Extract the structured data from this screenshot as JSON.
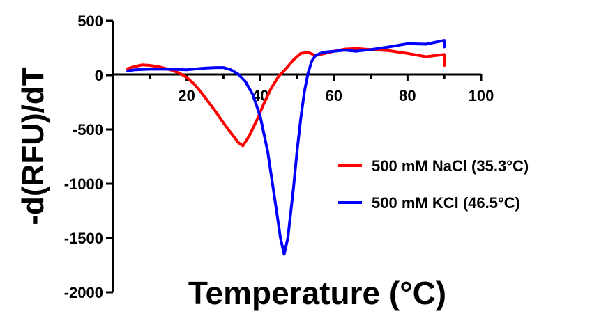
{
  "chart_data": {
    "type": "line",
    "title": "",
    "xlabel": "Temperature (°C)",
    "ylabel": "-d(RFU)/dT",
    "xlim": [
      0,
      100
    ],
    "ylim": [
      -2000,
      500
    ],
    "xticks": [
      20,
      40,
      60,
      80,
      100
    ],
    "yticks": [
      500,
      0,
      -500,
      -1000,
      -1500,
      -2000
    ],
    "grid": false,
    "legend_position": "right",
    "series": [
      {
        "name": "500 mM NaCl (35.3°C)",
        "color": "#ff0000",
        "x": [
          4,
          6,
          8,
          10,
          12,
          14,
          16,
          18,
          20,
          22,
          24,
          26,
          28,
          30,
          32,
          34,
          35.3,
          37,
          39,
          41,
          43,
          45,
          47,
          49,
          51,
          53,
          55,
          57,
          60,
          63,
          66,
          70,
          75,
          80,
          85,
          90,
          90
        ],
        "values": [
          60,
          80,
          95,
          90,
          80,
          65,
          45,
          20,
          -20,
          -80,
          -160,
          -250,
          -340,
          -440,
          -530,
          -620,
          -650,
          -560,
          -420,
          -260,
          -120,
          -10,
          60,
          140,
          200,
          210,
          180,
          195,
          220,
          240,
          245,
          235,
          225,
          200,
          170,
          190,
          90
        ]
      },
      {
        "name": "500 mM KCl (46.5°C)",
        "color": "#0000ff",
        "x": [
          4,
          6,
          10,
          15,
          20,
          25,
          28,
          30,
          32,
          34,
          36,
          38,
          40,
          42,
          44,
          45.5,
          46.5,
          47.5,
          49,
          50,
          51,
          52,
          53,
          54,
          55,
          57,
          60,
          63,
          66,
          70,
          75,
          80,
          85,
          90,
          90
        ],
        "values": [
          40,
          50,
          55,
          55,
          50,
          65,
          70,
          70,
          50,
          10,
          -60,
          -180,
          -380,
          -700,
          -1150,
          -1500,
          -1650,
          -1500,
          -1050,
          -700,
          -400,
          -150,
          20,
          130,
          180,
          210,
          220,
          230,
          220,
          235,
          260,
          290,
          285,
          320,
          260
        ]
      }
    ]
  }
}
